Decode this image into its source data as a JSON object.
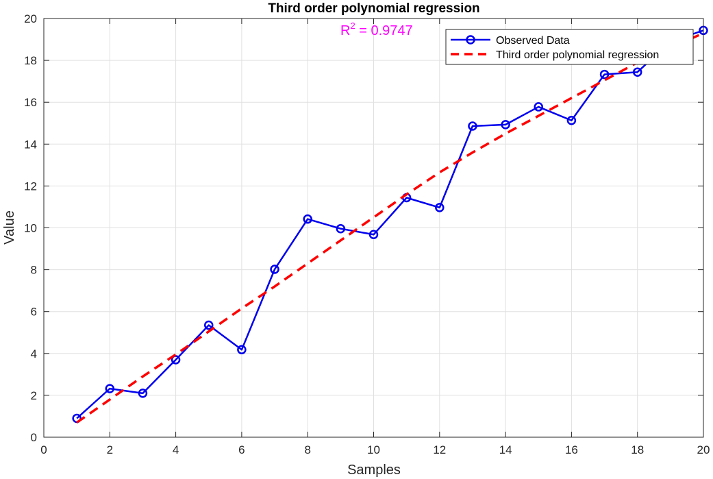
{
  "chart_data": {
    "type": "line",
    "title": "Third order polynomial regression",
    "xlabel": "Samples",
    "ylabel": "Value",
    "xlim": [
      0,
      20
    ],
    "ylim": [
      0,
      20
    ],
    "xticks": [
      0,
      2,
      4,
      6,
      8,
      10,
      12,
      14,
      16,
      18,
      20
    ],
    "yticks": [
      0,
      2,
      4,
      6,
      8,
      10,
      12,
      14,
      16,
      18,
      20
    ],
    "grid": true,
    "legend_position": "top-right",
    "annotation": {
      "base": "R",
      "superscript": "2",
      "text": " =  0.9747",
      "color": "#ff00ff"
    },
    "series": [
      {
        "name": "Observed Data",
        "style": "solid-line-circle-markers",
        "color": "#0000ee",
        "x": [
          1,
          2,
          3,
          4,
          5,
          6,
          7,
          8,
          9,
          10,
          11,
          12,
          13,
          14,
          15,
          16,
          17,
          18,
          19,
          20
        ],
        "y": [
          0.9,
          2.32,
          2.1,
          3.7,
          5.35,
          4.18,
          8.02,
          10.42,
          9.96,
          9.68,
          11.44,
          10.97,
          14.86,
          14.93,
          15.78,
          15.13,
          17.33,
          17.44,
          18.9,
          19.43
        ]
      },
      {
        "name": "Third order polynomial regression",
        "style": "dashed-line",
        "color": "#ff0000",
        "x": [
          1,
          2,
          3,
          4,
          5,
          6,
          7,
          8,
          9,
          10,
          11,
          12,
          13,
          14,
          15,
          16,
          17,
          18,
          19,
          20
        ],
        "y": [
          0.7,
          1.8,
          2.9,
          3.95,
          5.05,
          6.15,
          7.2,
          8.3,
          9.4,
          10.5,
          11.6,
          12.65,
          13.6,
          14.5,
          15.35,
          16.2,
          17.05,
          17.9,
          18.6,
          19.3
        ]
      }
    ]
  }
}
